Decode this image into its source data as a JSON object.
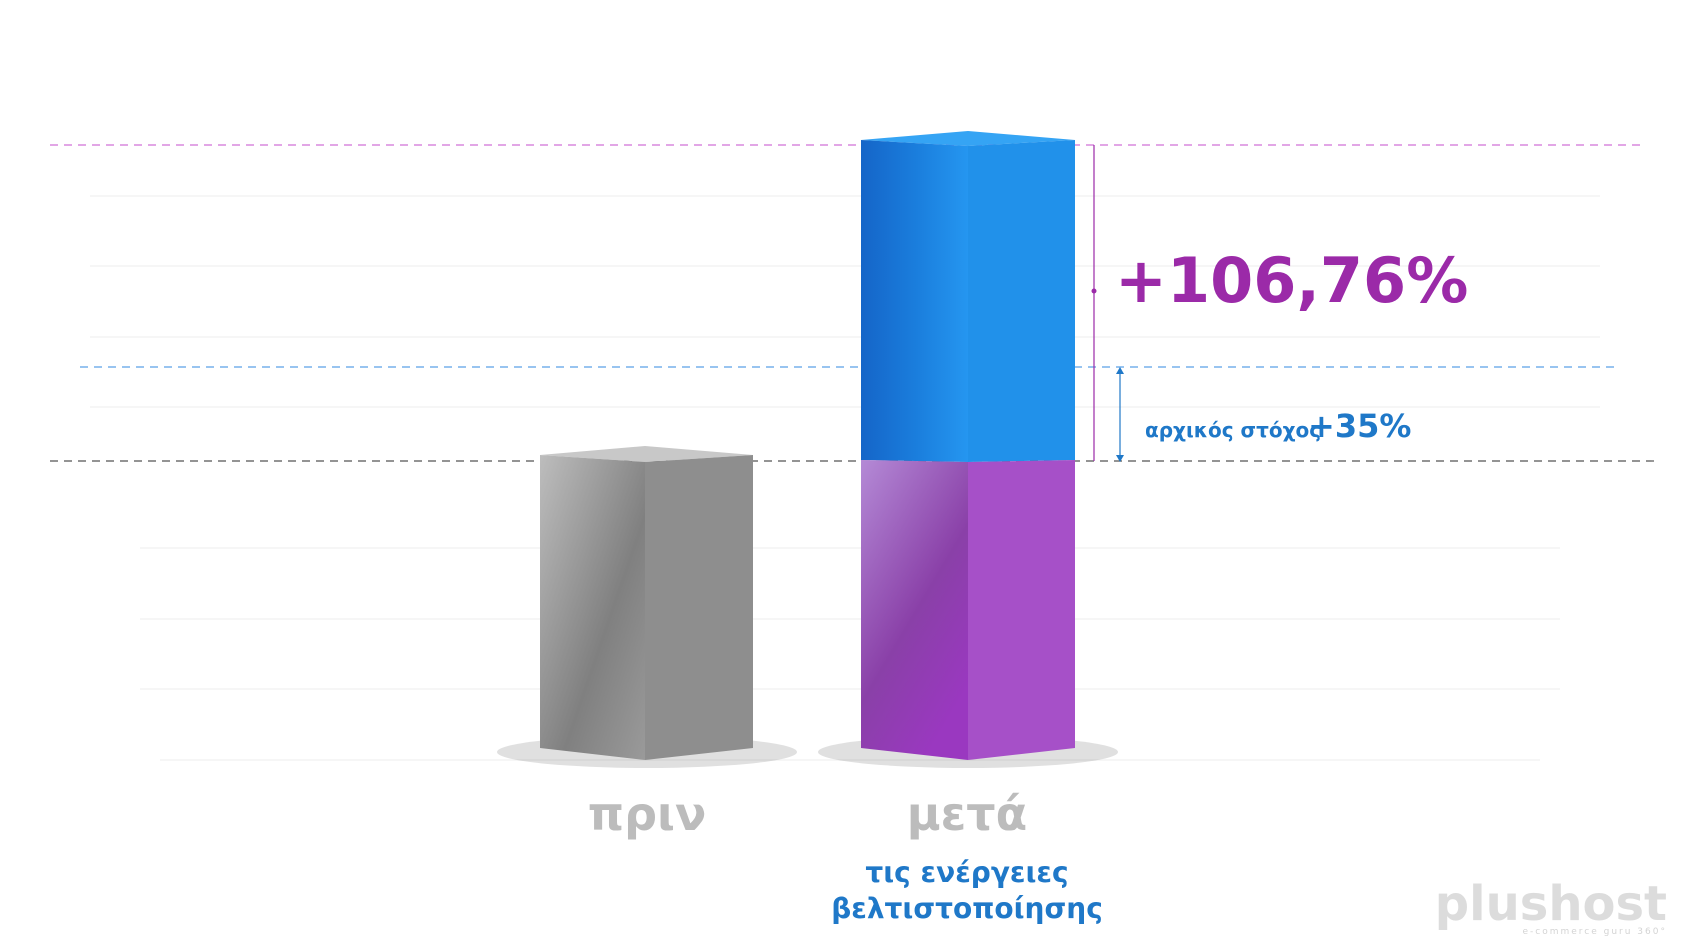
{
  "bars": [
    {
      "label": "πριν"
    },
    {
      "label": "μετά",
      "caption": [
        "τις ενέργειες",
        "βελτιστοποίησης"
      ]
    }
  ],
  "annotations": {
    "increase": "+106,76%",
    "target_label": "αρχικός στόχος",
    "target_value": "+35%"
  },
  "logo": {
    "name": "plushost",
    "tagline": "e-commerce guru 360°"
  }
}
